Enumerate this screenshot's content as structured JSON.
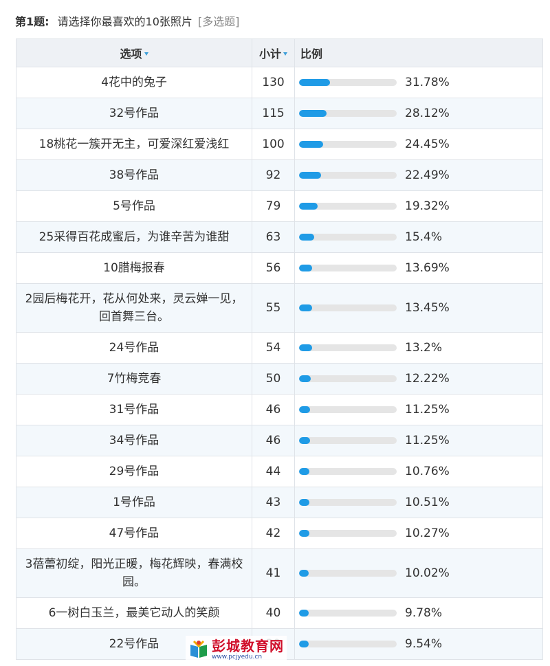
{
  "question": {
    "number": "第1题:",
    "text": "请选择你最喜欢的10张照片",
    "type": "[多选题]"
  },
  "table": {
    "headers": {
      "option": "选项",
      "count": "小计",
      "ratio": "比例"
    },
    "rows": [
      {
        "option": "4花中的兔子",
        "count": "130",
        "percent": "31.78%",
        "ratio": 0.3178
      },
      {
        "option": "32号作品",
        "count": "115",
        "percent": "28.12%",
        "ratio": 0.2812
      },
      {
        "option": "18桃花一簇开无主，可爱深红爱浅红",
        "count": "100",
        "percent": "24.45%",
        "ratio": 0.2445
      },
      {
        "option": "38号作品",
        "count": "92",
        "percent": "22.49%",
        "ratio": 0.2249
      },
      {
        "option": "5号作品",
        "count": "79",
        "percent": "19.32%",
        "ratio": 0.1932
      },
      {
        "option": "25采得百花成蜜后，为谁辛苦为谁甜",
        "count": "63",
        "percent": "15.4%",
        "ratio": 0.154
      },
      {
        "option": "10腊梅报春",
        "count": "56",
        "percent": "13.69%",
        "ratio": 0.1369
      },
      {
        "option": "2园后梅花开，花从何处来，灵云婵一见，回首舞三台。",
        "count": "55",
        "percent": "13.45%",
        "ratio": 0.1345
      },
      {
        "option": "24号作品",
        "count": "54",
        "percent": "13.2%",
        "ratio": 0.132
      },
      {
        "option": "7竹梅竞春",
        "count": "50",
        "percent": "12.22%",
        "ratio": 0.1222
      },
      {
        "option": "31号作品",
        "count": "46",
        "percent": "11.25%",
        "ratio": 0.1125
      },
      {
        "option": "34号作品",
        "count": "46",
        "percent": "11.25%",
        "ratio": 0.1125
      },
      {
        "option": "29号作品",
        "count": "44",
        "percent": "10.76%",
        "ratio": 0.1076
      },
      {
        "option": "1号作品",
        "count": "43",
        "percent": "10.51%",
        "ratio": 0.1051
      },
      {
        "option": "47号作品",
        "count": "42",
        "percent": "10.27%",
        "ratio": 0.1027
      },
      {
        "option": "3蓓蕾初绽，阳光正暖，梅花辉映，春满校园。",
        "count": "41",
        "percent": "10.02%",
        "ratio": 0.1002
      },
      {
        "option": "6一树白玉兰，最美它动人的笑颜",
        "count": "40",
        "percent": "9.78%",
        "ratio": 0.0978
      },
      {
        "option": "22号作品",
        "count": "39",
        "percent": "9.54%",
        "ratio": 0.0954
      }
    ]
  },
  "watermark": {
    "name": "彭城教育网",
    "url": "www.pcjyedu.cn"
  },
  "colors": {
    "bar_fill": "#1f9be6",
    "bar_track": "#e5e5e5",
    "header_bg": "#eef1f5",
    "row_alt_bg": "#f3f8fc",
    "watermark_red": "#d0102b"
  }
}
